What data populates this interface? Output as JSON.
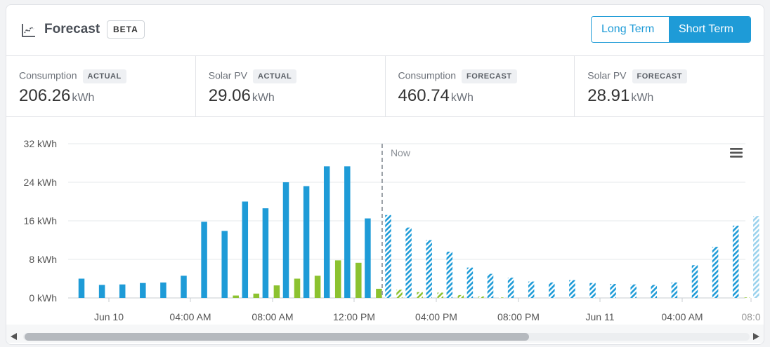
{
  "header": {
    "title": "Forecast",
    "badge": "BETA",
    "toggle": [
      "Long Term",
      "Short Term"
    ],
    "active_toggle": "Short Term"
  },
  "stats": [
    {
      "label": "Consumption",
      "tag": "ACTUAL",
      "value": "206.26",
      "unit": "kWh"
    },
    {
      "label": "Solar PV",
      "tag": "ACTUAL",
      "value": "29.06",
      "unit": "kWh"
    },
    {
      "label": "Consumption",
      "tag": "FORECAST",
      "value": "460.74",
      "unit": "kWh"
    },
    {
      "label": "Solar PV",
      "tag": "FORECAST",
      "value": "28.91",
      "unit": "kWh"
    }
  ],
  "colors": {
    "consumption": "#1e9bd7",
    "solar": "#8cc230",
    "grid": "#e6e8eb",
    "now_line": "#9aa0a6",
    "accent": "#1e9bd7"
  },
  "chart_data": {
    "type": "bar",
    "ylim": [
      0,
      32
    ],
    "yticks": [
      "0 kWh",
      "8 kWh",
      "16 kWh",
      "24 kWh",
      "32 kWh"
    ],
    "xticks": [
      "Jun 10",
      "04:00 AM",
      "08:00 AM",
      "12:00 PM",
      "04:00 PM",
      "08:00 PM",
      "Jun 11",
      "04:00 AM",
      "08:0"
    ],
    "now_label": "Now",
    "now_after_index": 15,
    "series": [
      {
        "name": "Consumption",
        "values": [
          4.0,
          2.7,
          2.8,
          3.1,
          3.2,
          4.6,
          15.8,
          13.9,
          20.0,
          18.6,
          24.0,
          23.2,
          27.3,
          27.3,
          16.5,
          17.2,
          14.6,
          12.0,
          9.6,
          6.3,
          5.0,
          4.2,
          3.4,
          3.2,
          3.7,
          3.1,
          2.9,
          2.8,
          2.7,
          3.2,
          6.8,
          10.6,
          15.0,
          17.0
        ]
      },
      {
        "name": "Solar PV",
        "values": [
          0,
          0,
          0,
          0,
          0,
          0,
          0,
          0.5,
          0.9,
          2.6,
          4.0,
          4.6,
          7.8,
          7.3,
          1.9,
          1.7,
          1.2,
          1.1,
          0.6,
          0.3,
          0.1,
          0,
          0,
          0,
          0,
          0,
          0,
          0,
          0,
          0,
          0,
          0,
          0.1,
          0.2
        ]
      }
    ]
  }
}
